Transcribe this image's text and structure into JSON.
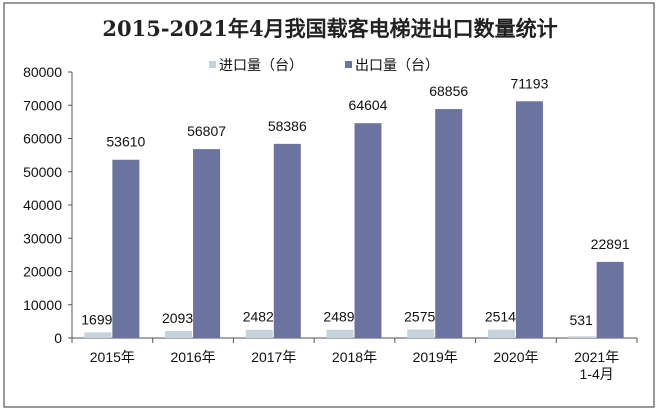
{
  "chart_data": {
    "type": "bar",
    "title": "2015-2021年4月我国载客电梯进出口数量统计",
    "categories": [
      "2015年",
      "2016年",
      "2017年",
      "2018年",
      "2019年",
      "2020年",
      "2021年\n1-4月"
    ],
    "series": [
      {
        "name": "进口量（台）",
        "values": [
          1699,
          2093,
          2482,
          2489,
          2575,
          2514,
          531
        ],
        "color": "#c5d3dc"
      },
      {
        "name": "出口量（台）",
        "values": [
          53610,
          56807,
          58386,
          64604,
          68856,
          71193,
          22891
        ],
        "color": "#6b74a0"
      }
    ],
    "ylim": [
      0,
      80000
    ],
    "yticks": [
      0,
      10000,
      20000,
      30000,
      40000,
      50000,
      60000,
      70000,
      80000
    ],
    "xlabel": "",
    "ylabel": "",
    "grid": false,
    "legend_position": "top"
  }
}
